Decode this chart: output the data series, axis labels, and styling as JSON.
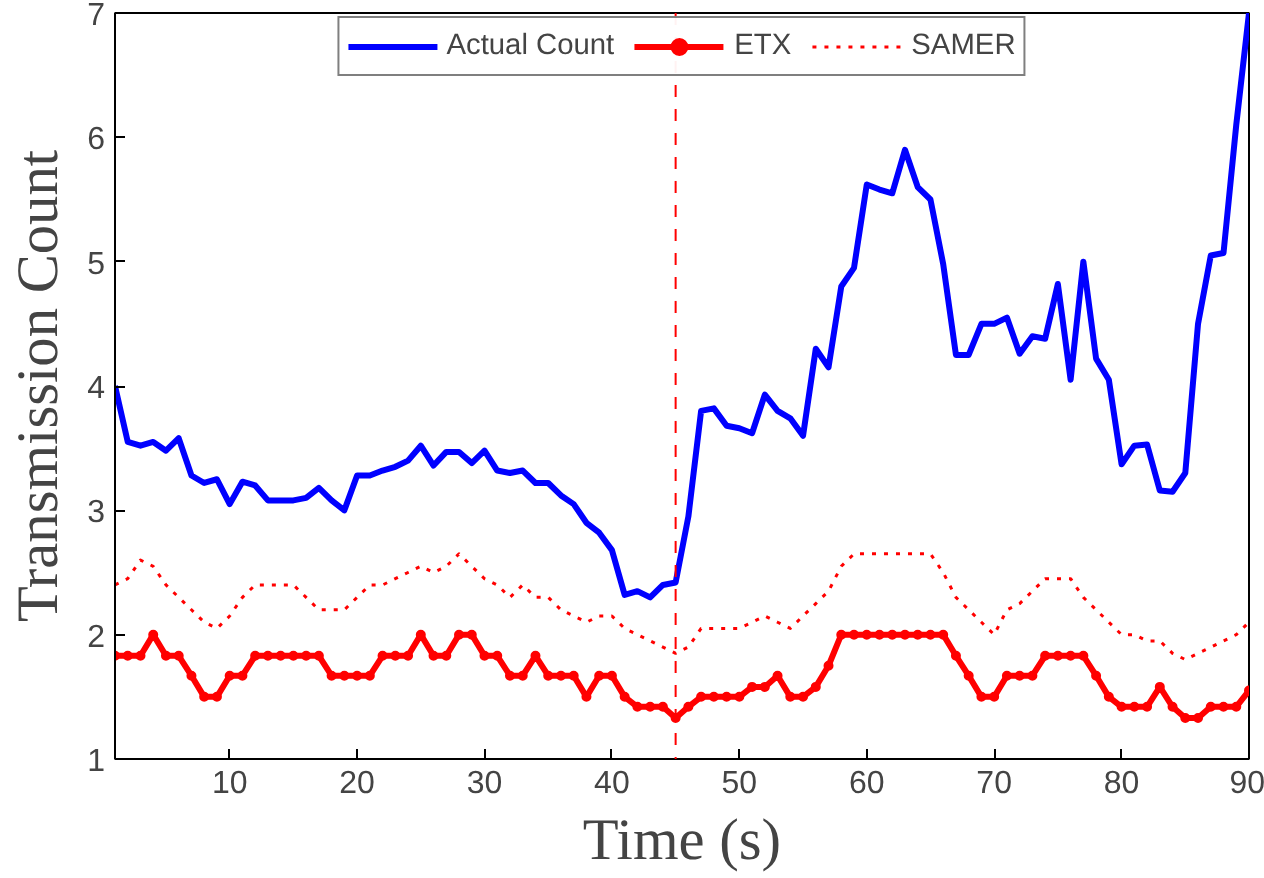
{
  "chart_data": {
    "type": "line",
    "xlabel": "Time (s)",
    "ylabel": "Transmission Count",
    "x": [
      1,
      2,
      3,
      4,
      5,
      6,
      7,
      8,
      9,
      10,
      11,
      12,
      13,
      14,
      15,
      16,
      17,
      18,
      19,
      20,
      21,
      22,
      23,
      24,
      25,
      26,
      27,
      28,
      29,
      30,
      31,
      32,
      33,
      34,
      35,
      36,
      37,
      38,
      39,
      40,
      41,
      42,
      43,
      44,
      45,
      46,
      47,
      48,
      49,
      50,
      51,
      52,
      53,
      54,
      55,
      56,
      57,
      58,
      59,
      60,
      61,
      62,
      63,
      64,
      65,
      66,
      67,
      68,
      69,
      70,
      71,
      72,
      73,
      74,
      75,
      76,
      77,
      78,
      79,
      80,
      81,
      82,
      83,
      84,
      85,
      86,
      87,
      88,
      89,
      90
    ],
    "series": [
      {
        "name": "Actual Count",
        "color": "#0000ff",
        "line_style": "solid",
        "marker": "none",
        "values": [
          4.0,
          3.55,
          3.52,
          3.55,
          3.48,
          3.58,
          3.28,
          3.22,
          3.25,
          3.05,
          3.23,
          3.2,
          3.08,
          3.08,
          3.08,
          3.1,
          3.18,
          3.08,
          3.0,
          3.28,
          3.28,
          3.32,
          3.35,
          3.4,
          3.52,
          3.36,
          3.47,
          3.47,
          3.38,
          3.48,
          3.32,
          3.3,
          3.32,
          3.22,
          3.22,
          3.12,
          3.05,
          2.9,
          2.82,
          2.68,
          2.32,
          2.35,
          2.3,
          2.4,
          2.42,
          2.95,
          3.8,
          3.82,
          3.68,
          3.66,
          3.62,
          3.93,
          3.8,
          3.74,
          3.6,
          4.3,
          4.15,
          4.8,
          4.95,
          5.62,
          5.58,
          5.55,
          5.9,
          5.6,
          5.5,
          4.98,
          4.25,
          4.25,
          4.5,
          4.5,
          4.55,
          4.26,
          4.4,
          4.38,
          4.82,
          4.05,
          5.0,
          4.22,
          4.05,
          3.37,
          3.52,
          3.53,
          3.16,
          3.15,
          3.3,
          4.5,
          5.05,
          5.07,
          6.1,
          7.0
        ]
      },
      {
        "name": "ETX",
        "color": "#ff0000",
        "line_style": "solid",
        "marker": "circle",
        "values": [
          1.83,
          1.83,
          1.83,
          2.0,
          1.83,
          1.83,
          1.67,
          1.5,
          1.5,
          1.67,
          1.67,
          1.83,
          1.83,
          1.83,
          1.83,
          1.83,
          1.83,
          1.67,
          1.67,
          1.67,
          1.67,
          1.83,
          1.83,
          1.83,
          2.0,
          1.83,
          1.83,
          2.0,
          2.0,
          1.83,
          1.83,
          1.67,
          1.67,
          1.83,
          1.67,
          1.67,
          1.67,
          1.5,
          1.67,
          1.67,
          1.5,
          1.42,
          1.42,
          1.42,
          1.33,
          1.42,
          1.5,
          1.5,
          1.5,
          1.5,
          1.58,
          1.58,
          1.67,
          1.5,
          1.5,
          1.58,
          1.75,
          2.0,
          2.0,
          2.0,
          2.0,
          2.0,
          2.0,
          2.0,
          2.0,
          2.0,
          1.83,
          1.67,
          1.5,
          1.5,
          1.67,
          1.67,
          1.67,
          1.83,
          1.83,
          1.83,
          1.83,
          1.67,
          1.5,
          1.42,
          1.42,
          1.42,
          1.58,
          1.42,
          1.33,
          1.33,
          1.42,
          1.42,
          1.42,
          1.55
        ]
      },
      {
        "name": "SAMER",
        "color": "#ff0000",
        "line_style": "dotted",
        "marker": "none",
        "values": [
          2.4,
          2.45,
          2.6,
          2.55,
          2.4,
          2.3,
          2.2,
          2.1,
          2.05,
          2.15,
          2.3,
          2.4,
          2.4,
          2.4,
          2.4,
          2.3,
          2.2,
          2.2,
          2.2,
          2.3,
          2.4,
          2.4,
          2.45,
          2.5,
          2.55,
          2.5,
          2.55,
          2.65,
          2.55,
          2.45,
          2.4,
          2.3,
          2.4,
          2.3,
          2.3,
          2.2,
          2.15,
          2.1,
          2.15,
          2.15,
          2.05,
          2.0,
          1.95,
          1.9,
          1.85,
          1.9,
          2.05,
          2.05,
          2.05,
          2.05,
          2.1,
          2.15,
          2.1,
          2.05,
          2.15,
          2.25,
          2.35,
          2.55,
          2.65,
          2.65,
          2.65,
          2.65,
          2.65,
          2.65,
          2.65,
          2.5,
          2.3,
          2.2,
          2.1,
          2.0,
          2.2,
          2.25,
          2.35,
          2.45,
          2.45,
          2.45,
          2.3,
          2.2,
          2.1,
          2.0,
          2.0,
          1.95,
          1.95,
          1.85,
          1.8,
          1.85,
          1.9,
          1.95,
          2.0,
          2.1
        ]
      }
    ],
    "xlim": [
      1,
      90
    ],
    "ylim": [
      1,
      7
    ],
    "xticks": [
      10,
      20,
      30,
      40,
      50,
      60,
      70,
      80,
      90
    ],
    "yticks": [
      1,
      2,
      3,
      4,
      5,
      6,
      7
    ],
    "ref_lines": [
      {
        "axis": "x",
        "value": 45,
        "label": null,
        "color": "#ff0000",
        "line_style": "dashed"
      }
    ],
    "grid": false,
    "legend": "top"
  }
}
